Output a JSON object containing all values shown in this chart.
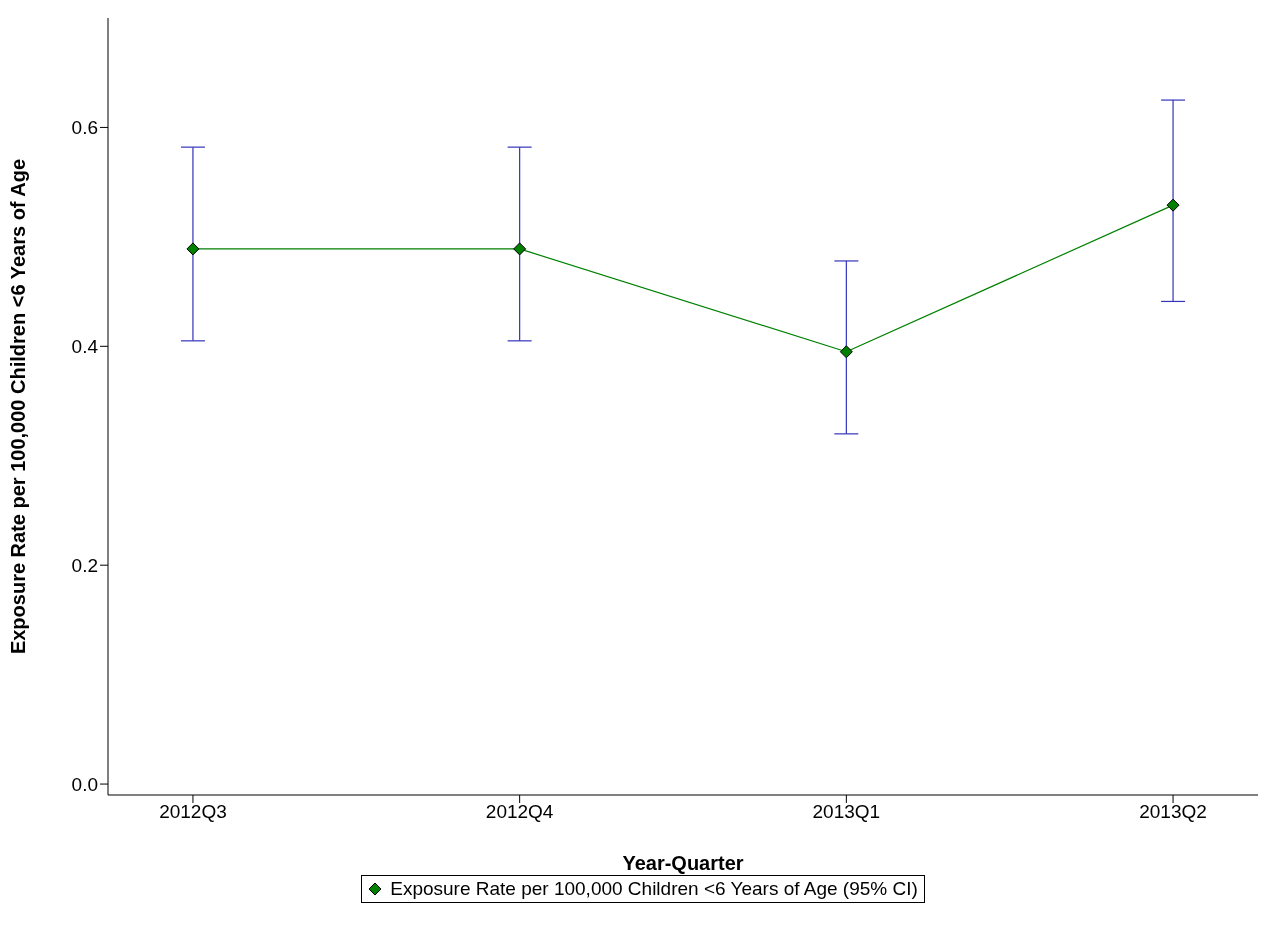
{
  "chart_data": {
    "type": "line",
    "xlabel": "Year-Quarter",
    "ylabel": "Exposure Rate per 100,000 Children <6 Years of Age",
    "categories": [
      "2012Q3",
      "2012Q4",
      "2013Q1",
      "2013Q2"
    ],
    "series": [
      {
        "name": "Exposure Rate per 100,000 Children <6 Years of Age (95% CI)",
        "color": "#008000",
        "values": [
          0.489,
          0.489,
          0.395,
          0.529
        ],
        "errors": [
          [
            0.405,
            0.582
          ],
          [
            0.405,
            0.582
          ],
          [
            0.32,
            0.478
          ],
          [
            0.441,
            0.625
          ]
        ]
      }
    ],
    "ylim": [
      -0.01,
      0.7
    ],
    "yticks": [
      {
        "value": 0,
        "label": "0.0"
      },
      0.2,
      0.4,
      0.6
    ],
    "grid": false,
    "legend": "bottom",
    "marker": "diamond",
    "line_style": "solid"
  }
}
